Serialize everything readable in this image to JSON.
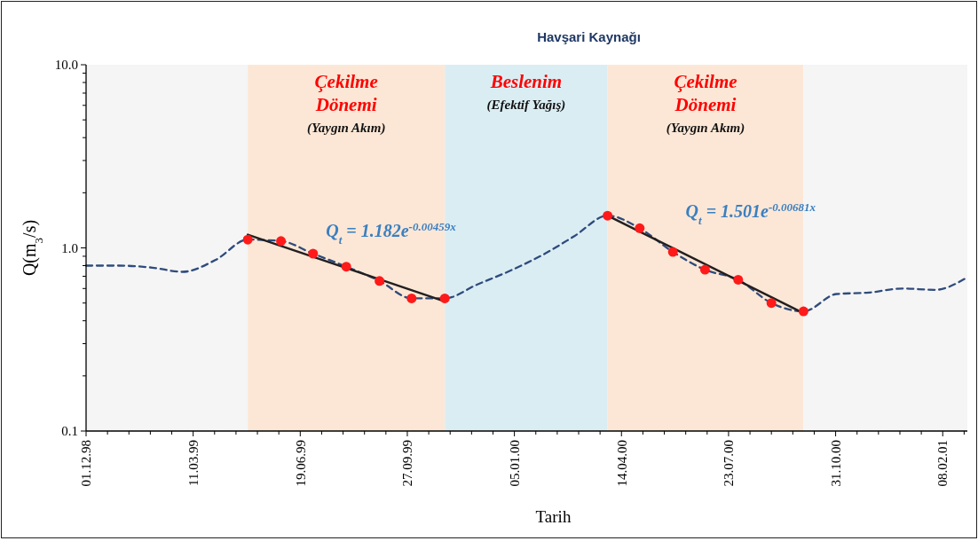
{
  "chart_data": {
    "type": "line",
    "title": "Havşari Kaynağı",
    "xlabel": "Tarih",
    "ylabel": "Q(m$_{3}$/s)",
    "log": "y",
    "grid": false,
    "xlim": [
      "1998-12-01",
      "2001-03-03"
    ],
    "xticks": [
      {
        "value": "1998-12-01",
        "label": "01.12.98"
      },
      {
        "value": "1998-12-21",
        "label": null
      },
      {
        "value": "1999-01-10",
        "label": null
      },
      {
        "value": "1999-01-30",
        "label": null
      },
      {
        "value": "1999-02-19",
        "label": null
      },
      {
        "value": "1999-03-11",
        "label": "11.03.99"
      },
      {
        "value": "1999-03-31",
        "label": null
      },
      {
        "value": "1999-04-20",
        "label": null
      },
      {
        "value": "1999-05-10",
        "label": null
      },
      {
        "value": "1999-05-30",
        "label": null
      },
      {
        "value": "1999-06-19",
        "label": "19.06.99"
      },
      {
        "value": "1999-07-09",
        "label": null
      },
      {
        "value": "1999-07-29",
        "label": null
      },
      {
        "value": "1999-08-18",
        "label": null
      },
      {
        "value": "1999-09-07",
        "label": null
      },
      {
        "value": "1999-09-27",
        "label": "27.09.99"
      },
      {
        "value": "1999-10-17",
        "label": null
      },
      {
        "value": "1999-11-06",
        "label": null
      },
      {
        "value": "1999-11-26",
        "label": null
      },
      {
        "value": "1999-12-16",
        "label": null
      },
      {
        "value": "2000-01-05",
        "label": "05.01.00"
      },
      {
        "value": "2000-01-25",
        "label": null
      },
      {
        "value": "2000-02-14",
        "label": null
      },
      {
        "value": "2000-03-05",
        "label": null
      },
      {
        "value": "2000-03-25",
        "label": null
      },
      {
        "value": "2000-04-14",
        "label": "14.04.00"
      },
      {
        "value": "2000-05-04",
        "label": null
      },
      {
        "value": "2000-05-24",
        "label": null
      },
      {
        "value": "2000-06-13",
        "label": null
      },
      {
        "value": "2000-07-03",
        "label": null
      },
      {
        "value": "2000-07-23",
        "label": "23.07.00"
      },
      {
        "value": "2000-08-12",
        "label": null
      },
      {
        "value": "2000-09-01",
        "label": null
      },
      {
        "value": "2000-09-21",
        "label": null
      },
      {
        "value": "2000-10-11",
        "label": null
      },
      {
        "value": "2000-10-31",
        "label": "31.10.00"
      },
      {
        "value": "2000-11-20",
        "label": null
      },
      {
        "value": "2000-12-10",
        "label": null
      },
      {
        "value": "2000-12-30",
        "label": null
      },
      {
        "value": "2001-01-19",
        "label": null
      },
      {
        "value": "2001-02-08",
        "label": "08.02.01"
      },
      {
        "value": "2001-02-28",
        "label": null
      }
    ],
    "ylim": [
      0.1,
      10
    ],
    "yticks": [
      0.1,
      {
        "value": 0.2,
        "label": null
      },
      {
        "value": 0.3,
        "label": null
      },
      {
        "value": 0.4,
        "label": null
      },
      {
        "value": 0.5,
        "label": null
      },
      {
        "value": 0.6,
        "label": null
      },
      {
        "value": 0.7,
        "label": null
      },
      {
        "value": 0.8,
        "label": null
      },
      {
        "value": 0.9,
        "label": null
      },
      {
        "value": 1,
        "label": "1.0"
      },
      {
        "value": 2,
        "label": null
      },
      {
        "value": 3,
        "label": null
      },
      {
        "value": 4,
        "label": null
      },
      {
        "value": 5,
        "label": null
      },
      {
        "value": 6,
        "label": null
      },
      {
        "value": 7,
        "label": null
      },
      {
        "value": 8,
        "label": null
      },
      {
        "value": 9,
        "label": null
      },
      {
        "value": 10,
        "label": "10.0"
      }
    ],
    "bands": [
      {
        "axis": "x",
        "from": "1998-12-01",
        "to": "1999-05-01",
        "color": "#f5f5f5"
      },
      {
        "axis": "x",
        "from": "1999-05-01",
        "to": "1999-11-01",
        "label": "Çekilme Dönemi",
        "color": "#fce7d6"
      },
      {
        "axis": "x",
        "from": "1999-11-01",
        "to": "2000-04-01",
        "label": "Beslenim",
        "color": "#daedf3"
      },
      {
        "axis": "x",
        "from": "2000-04-01",
        "to": "2000-10-01",
        "label": "Çekilme Dönemi",
        "color": "#fce7d6"
      },
      {
        "axis": "x",
        "from": "2000-10-01",
        "to": "2001-03-03",
        "color": "#f5f5f5"
      }
    ],
    "annotations": [
      "(Yaygın Akım)",
      "(Efektif Yağış)",
      "(Yaygın Akım)",
      "Q$_{t}$ = 1.182e$^{-0.00459x}$",
      "Q$_{t}$ = 1.501e$^{-0.00681x}$"
    ],
    "series": [
      {
        "type": "line",
        "color": "#2f4b7c",
        "line_style": "dashed",
        "marker": "none",
        "x": [
          "1998-12-01",
          "1999-01-01",
          "1999-02-01",
          "1999-03-01",
          "1999-04-01",
          "1999-05-01",
          "1999-06-01",
          "1999-07-01",
          "1999-08-01",
          "1999-09-01",
          "1999-10-01",
          "1999-11-01",
          "1999-12-01",
          "2000-01-01",
          "2000-02-01",
          "2000-03-01",
          "2000-04-01",
          "2000-05-01",
          "2000-06-01",
          "2000-07-01",
          "2000-08-01",
          "2000-09-01",
          "2000-10-01",
          "2000-11-01",
          "2000-12-01",
          "2001-01-01",
          "2001-02-01",
          "2001-03-01"
        ],
        "values": [
          0.8,
          0.8,
          0.78,
          0.74,
          0.86,
          1.11,
          1.09,
          0.93,
          0.79,
          0.66,
          0.53,
          0.53,
          0.63,
          0.75,
          0.92,
          1.16,
          1.5,
          1.28,
          0.95,
          0.76,
          0.67,
          0.5,
          0.45,
          0.56,
          0.57,
          0.6,
          0.59,
          0.68
        ]
      },
      {
        "type": "line",
        "color": "#231f20",
        "line_style": "solid",
        "marker": "none",
        "x": [
          "1999-05-01",
          "1999-11-01"
        ],
        "values": [
          1.18,
          0.51
        ]
      },
      {
        "type": "line",
        "color": "#231f20",
        "line_style": "solid",
        "marker": "none",
        "x": [
          "2000-04-01",
          "2000-10-01"
        ],
        "values": [
          1.5,
          0.44
        ]
      },
      {
        "type": "scatter",
        "color": "#ff1a1a",
        "marker": "circle",
        "x": [
          "1999-05-01",
          "1999-06-01",
          "1999-07-01",
          "1999-08-01",
          "1999-09-01",
          "1999-10-01",
          "1999-11-01",
          "2000-04-01",
          "2000-05-01",
          "2000-06-01",
          "2000-07-01",
          "2000-08-01",
          "2000-09-01",
          "2000-10-01"
        ],
        "values": [
          1.11,
          1.09,
          0.93,
          0.79,
          0.66,
          0.53,
          0.53,
          1.5,
          1.28,
          0.95,
          0.76,
          0.67,
          0.5,
          0.45
        ]
      }
    ]
  }
}
